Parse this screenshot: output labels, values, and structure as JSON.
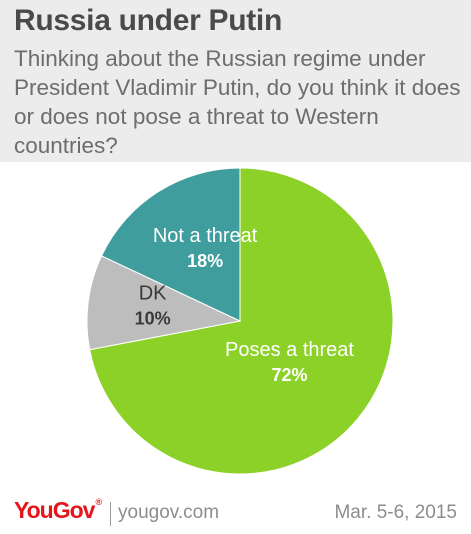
{
  "header": {
    "title": "Russia under Putin",
    "subtitle": "Thinking about the Russian regime under President Vladimir Putin, do you think it does or does not pose a threat to Western countries?"
  },
  "chart_data": {
    "type": "pie",
    "slices": [
      {
        "label": "Poses a threat",
        "value": 72,
        "value_label": "72%",
        "color": "#8cd128"
      },
      {
        "label": "DK",
        "value": 10,
        "value_label": "10%",
        "color": "#bdbdbd"
      },
      {
        "label": "Not a threat",
        "value": 18,
        "value_label": "18%",
        "color": "#3f9e9d"
      }
    ],
    "start": "top",
    "direction": "clockwise",
    "label_placement": "inside"
  },
  "footer": {
    "logo": "YouGov",
    "logo_mark": "®",
    "url": "yougov.com",
    "date": "Mar. 5-6, 2015"
  }
}
